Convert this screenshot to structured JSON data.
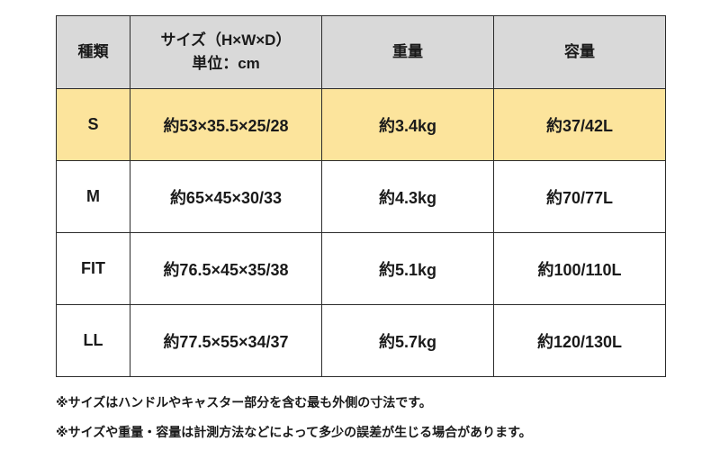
{
  "colors": {
    "header_bg": "#d9d9d9",
    "highlight_row_bg": "#fce49c",
    "border": "#2b2b2b",
    "text": "#1a1a1a",
    "page_bg": "#ffffff"
  },
  "table": {
    "header": {
      "type": "種類",
      "size_line1": "サイズ（H×W×D）",
      "size_line2": "単位：cm",
      "weight": "重量",
      "capacity": "容量"
    },
    "rows": [
      {
        "type": "S",
        "size": "約53×35.5×25/28",
        "weight": "約3.4kg",
        "capacity": "約37/42L",
        "highlighted": true
      },
      {
        "type": "M",
        "size": "約65×45×30/33",
        "weight": "約4.3kg",
        "capacity": "約70/77L",
        "highlighted": false
      },
      {
        "type": "FIT",
        "size": "約76.5×45×35/38",
        "weight": "約5.1kg",
        "capacity": "約100/110L",
        "highlighted": false
      },
      {
        "type": "LL",
        "size": "約77.5×55×34/37",
        "weight": "約5.7kg",
        "capacity": "約120/130L",
        "highlighted": false
      }
    ]
  },
  "notes": [
    "※サイズはハンドルやキャスター部分を含む最も外側の寸法です。",
    "※サイズや重量・容量は計測方法などによって多少の誤差が生じる場合があります。"
  ]
}
